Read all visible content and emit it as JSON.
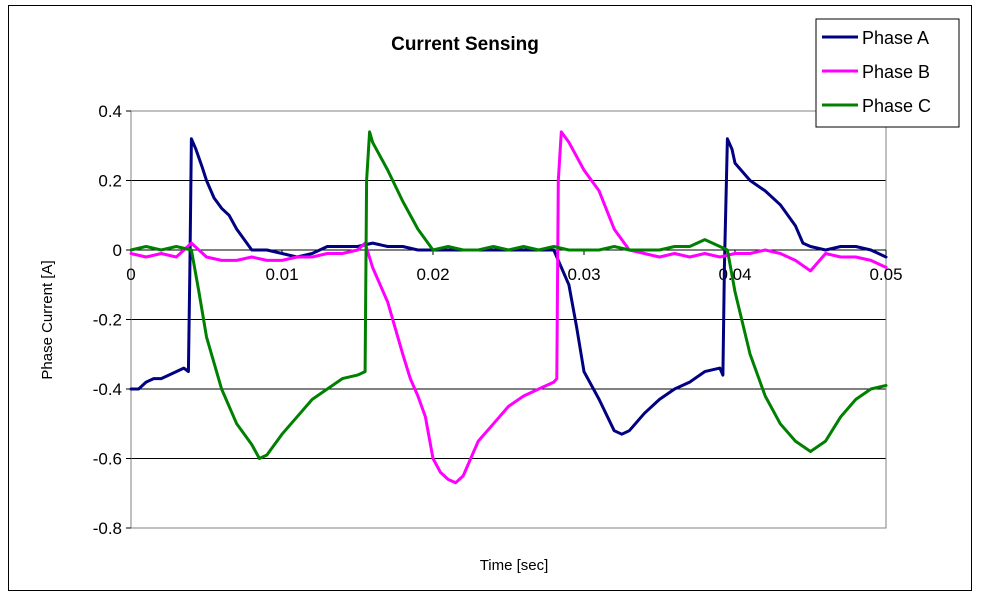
{
  "chart_data": {
    "type": "line",
    "title": "Current Sensing",
    "xlabel": "Time [sec]",
    "ylabel": "Phase Current [A]",
    "xlim": [
      0,
      0.05
    ],
    "ylim": [
      -0.8,
      0.4
    ],
    "x_ticks": [
      0,
      0.01,
      0.02,
      0.03,
      0.04,
      0.05
    ],
    "x_tick_labels": [
      "0",
      "0.01",
      "0.02",
      "0.03",
      "0.04",
      "0.05"
    ],
    "y_ticks": [
      0.4,
      0.2,
      0,
      -0.2,
      -0.4,
      -0.6,
      -0.8
    ],
    "y_tick_labels": [
      "0.4",
      "0.2",
      "0",
      "-0.2",
      "-0.4",
      "-0.6",
      "-0.8"
    ],
    "grid": "horizontal",
    "legend_position": "top-right",
    "series": [
      {
        "name": "Phase A",
        "color": "#000080",
        "points": [
          [
            0.0,
            -0.4
          ],
          [
            0.0005,
            -0.4
          ],
          [
            0.001,
            -0.38
          ],
          [
            0.0015,
            -0.37
          ],
          [
            0.002,
            -0.37
          ],
          [
            0.0025,
            -0.36
          ],
          [
            0.003,
            -0.35
          ],
          [
            0.0035,
            -0.34
          ],
          [
            0.0038,
            -0.35
          ],
          [
            0.0039,
            -0.05
          ],
          [
            0.004,
            0.32
          ],
          [
            0.0043,
            0.29
          ],
          [
            0.0047,
            0.24
          ],
          [
            0.005,
            0.2
          ],
          [
            0.0055,
            0.15
          ],
          [
            0.006,
            0.12
          ],
          [
            0.0065,
            0.1
          ],
          [
            0.007,
            0.06
          ],
          [
            0.0075,
            0.03
          ],
          [
            0.008,
            0.0
          ],
          [
            0.009,
            0.0
          ],
          [
            0.01,
            -0.01
          ],
          [
            0.011,
            -0.02
          ],
          [
            0.012,
            -0.01
          ],
          [
            0.013,
            0.01
          ],
          [
            0.014,
            0.01
          ],
          [
            0.015,
            0.01
          ],
          [
            0.016,
            0.02
          ],
          [
            0.017,
            0.01
          ],
          [
            0.018,
            0.01
          ],
          [
            0.019,
            0.0
          ],
          [
            0.02,
            0.0
          ],
          [
            0.021,
            0.0
          ],
          [
            0.022,
            0.0
          ],
          [
            0.023,
            0.0
          ],
          [
            0.024,
            0.0
          ],
          [
            0.025,
            0.0
          ],
          [
            0.026,
            0.0
          ],
          [
            0.027,
            0.0
          ],
          [
            0.028,
            0.0
          ],
          [
            0.0282,
            -0.02
          ],
          [
            0.029,
            -0.1
          ],
          [
            0.0295,
            -0.22
          ],
          [
            0.03,
            -0.35
          ],
          [
            0.031,
            -0.43
          ],
          [
            0.032,
            -0.52
          ],
          [
            0.0325,
            -0.53
          ],
          [
            0.033,
            -0.52
          ],
          [
            0.034,
            -0.47
          ],
          [
            0.035,
            -0.43
          ],
          [
            0.036,
            -0.4
          ],
          [
            0.037,
            -0.38
          ],
          [
            0.038,
            -0.35
          ],
          [
            0.039,
            -0.34
          ],
          [
            0.0392,
            -0.36
          ],
          [
            0.0393,
            -0.05
          ],
          [
            0.0395,
            0.32
          ],
          [
            0.0398,
            0.29
          ],
          [
            0.04,
            0.25
          ],
          [
            0.041,
            0.2
          ],
          [
            0.042,
            0.17
          ],
          [
            0.043,
            0.13
          ],
          [
            0.044,
            0.07
          ],
          [
            0.0445,
            0.02
          ],
          [
            0.045,
            0.01
          ],
          [
            0.046,
            0.0
          ],
          [
            0.047,
            0.01
          ],
          [
            0.048,
            0.01
          ],
          [
            0.049,
            0.0
          ],
          [
            0.05,
            -0.02
          ]
        ]
      },
      {
        "name": "Phase B",
        "color": "#FF00FF",
        "points": [
          [
            0.0,
            -0.01
          ],
          [
            0.001,
            -0.02
          ],
          [
            0.002,
            -0.01
          ],
          [
            0.003,
            -0.02
          ],
          [
            0.004,
            0.02
          ],
          [
            0.005,
            -0.02
          ],
          [
            0.006,
            -0.03
          ],
          [
            0.007,
            -0.03
          ],
          [
            0.008,
            -0.02
          ],
          [
            0.009,
            -0.03
          ],
          [
            0.01,
            -0.03
          ],
          [
            0.011,
            -0.02
          ],
          [
            0.012,
            -0.02
          ],
          [
            0.013,
            -0.01
          ],
          [
            0.014,
            -0.01
          ],
          [
            0.015,
            0.0
          ],
          [
            0.0155,
            0.02
          ],
          [
            0.016,
            -0.05
          ],
          [
            0.017,
            -0.15
          ],
          [
            0.018,
            -0.3
          ],
          [
            0.0185,
            -0.37
          ],
          [
            0.019,
            -0.42
          ],
          [
            0.0195,
            -0.48
          ],
          [
            0.02,
            -0.6
          ],
          [
            0.0205,
            -0.64
          ],
          [
            0.021,
            -0.66
          ],
          [
            0.0215,
            -0.67
          ],
          [
            0.022,
            -0.65
          ],
          [
            0.0225,
            -0.6
          ],
          [
            0.023,
            -0.55
          ],
          [
            0.024,
            -0.5
          ],
          [
            0.025,
            -0.45
          ],
          [
            0.026,
            -0.42
          ],
          [
            0.027,
            -0.4
          ],
          [
            0.028,
            -0.38
          ],
          [
            0.0282,
            -0.37
          ],
          [
            0.0283,
            0.2
          ],
          [
            0.0285,
            0.34
          ],
          [
            0.029,
            0.31
          ],
          [
            0.03,
            0.23
          ],
          [
            0.031,
            0.17
          ],
          [
            0.032,
            0.06
          ],
          [
            0.033,
            0.0
          ],
          [
            0.034,
            -0.01
          ],
          [
            0.035,
            -0.02
          ],
          [
            0.036,
            -0.01
          ],
          [
            0.037,
            -0.02
          ],
          [
            0.038,
            -0.01
          ],
          [
            0.039,
            -0.02
          ],
          [
            0.04,
            -0.01
          ],
          [
            0.041,
            -0.01
          ],
          [
            0.042,
            0.0
          ],
          [
            0.043,
            -0.01
          ],
          [
            0.044,
            -0.03
          ],
          [
            0.045,
            -0.06
          ],
          [
            0.046,
            -0.01
          ],
          [
            0.047,
            -0.02
          ],
          [
            0.048,
            -0.02
          ],
          [
            0.049,
            -0.03
          ],
          [
            0.05,
            -0.05
          ]
        ]
      },
      {
        "name": "Phase C",
        "color": "#008000",
        "points": [
          [
            0.0,
            0.0
          ],
          [
            0.001,
            0.01
          ],
          [
            0.002,
            0.0
          ],
          [
            0.003,
            0.01
          ],
          [
            0.004,
            0.0
          ],
          [
            0.0045,
            -0.12
          ],
          [
            0.005,
            -0.25
          ],
          [
            0.006,
            -0.4
          ],
          [
            0.007,
            -0.5
          ],
          [
            0.008,
            -0.56
          ],
          [
            0.0085,
            -0.6
          ],
          [
            0.009,
            -0.59
          ],
          [
            0.01,
            -0.53
          ],
          [
            0.011,
            -0.48
          ],
          [
            0.012,
            -0.43
          ],
          [
            0.013,
            -0.4
          ],
          [
            0.014,
            -0.37
          ],
          [
            0.015,
            -0.36
          ],
          [
            0.0155,
            -0.35
          ],
          [
            0.0156,
            0.2
          ],
          [
            0.0158,
            0.34
          ],
          [
            0.016,
            0.31
          ],
          [
            0.017,
            0.23
          ],
          [
            0.018,
            0.14
          ],
          [
            0.019,
            0.06
          ],
          [
            0.02,
            0.0
          ],
          [
            0.021,
            0.01
          ],
          [
            0.022,
            0.0
          ],
          [
            0.023,
            0.0
          ],
          [
            0.024,
            0.01
          ],
          [
            0.025,
            0.0
          ],
          [
            0.026,
            0.01
          ],
          [
            0.027,
            0.0
          ],
          [
            0.028,
            0.01
          ],
          [
            0.029,
            0.0
          ],
          [
            0.03,
            0.0
          ],
          [
            0.031,
            0.0
          ],
          [
            0.032,
            0.01
          ],
          [
            0.033,
            0.0
          ],
          [
            0.034,
            0.0
          ],
          [
            0.035,
            0.0
          ],
          [
            0.036,
            0.01
          ],
          [
            0.037,
            0.01
          ],
          [
            0.038,
            0.03
          ],
          [
            0.039,
            0.01
          ],
          [
            0.0395,
            0.0
          ],
          [
            0.04,
            -0.12
          ],
          [
            0.041,
            -0.3
          ],
          [
            0.042,
            -0.42
          ],
          [
            0.043,
            -0.5
          ],
          [
            0.044,
            -0.55
          ],
          [
            0.045,
            -0.58
          ],
          [
            0.046,
            -0.55
          ],
          [
            0.047,
            -0.48
          ],
          [
            0.048,
            -0.43
          ],
          [
            0.049,
            -0.4
          ],
          [
            0.05,
            -0.39
          ]
        ]
      }
    ]
  }
}
